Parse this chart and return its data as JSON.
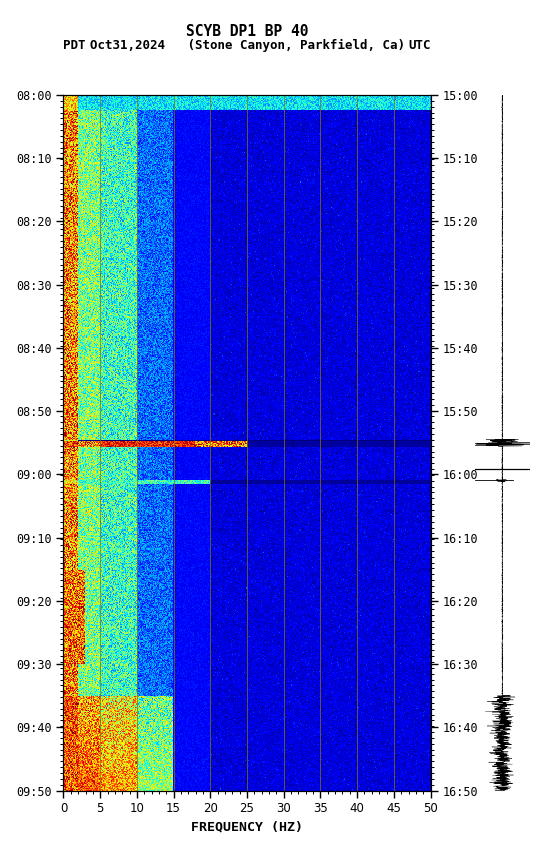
{
  "title_line1": "SCYB DP1 BP 40",
  "title_line2_left": "PDT",
  "title_line2_mid": "Oct31,2024   (Stone Canyon, Parkfield, Ca)",
  "title_line2_right": "UTC",
  "xlabel": "FREQUENCY (HZ)",
  "freq_min": 0,
  "freq_max": 50,
  "left_ticks": [
    "08:00",
    "08:10",
    "08:20",
    "08:30",
    "08:40",
    "08:50",
    "09:00",
    "09:10",
    "09:20",
    "09:30",
    "09:40",
    "09:50"
  ],
  "right_ticks": [
    "15:00",
    "15:10",
    "15:20",
    "15:30",
    "15:40",
    "15:50",
    "16:00",
    "16:10",
    "16:20",
    "16:30",
    "16:40",
    "16:50"
  ],
  "vertical_lines_hz": [
    5,
    10,
    15,
    20,
    25,
    30,
    35,
    40,
    45
  ],
  "vline_color": "#8B7500",
  "seed": 42,
  "n_time_steps": 660,
  "n_freq_steps": 500,
  "event1_min": 55,
  "event2_min": 61,
  "total_minutes": 110
}
